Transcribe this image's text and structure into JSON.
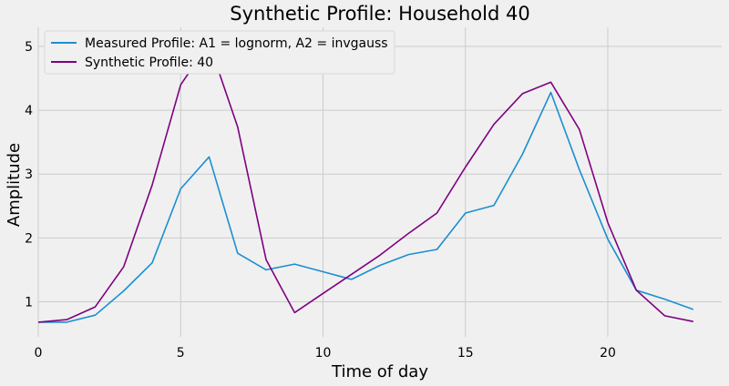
{
  "chart_data": {
    "type": "line",
    "title": "Synthetic Profile: Household 40",
    "xlabel": "Time of day",
    "ylabel": "Amplitude",
    "xlim": [
      0,
      24
    ],
    "ylim": [
      0.45,
      5.3
    ],
    "xticks": [
      0,
      5,
      10,
      15,
      20
    ],
    "yticks": [
      1,
      2,
      3,
      4,
      5
    ],
    "grid": true,
    "legend_position": "top-left",
    "x": [
      0,
      1,
      2,
      3,
      4,
      5,
      6,
      7,
      8,
      9,
      10,
      11,
      12,
      13,
      14,
      15,
      16,
      17,
      18,
      19,
      20,
      21,
      22,
      23
    ],
    "series": [
      {
        "name": "Measured Profile: A1 = lognorm, A2 = invgauss",
        "color": "#1a8fd0",
        "values": [
          0.68,
          0.68,
          0.79,
          1.17,
          1.61,
          2.77,
          3.27,
          1.76,
          1.5,
          1.59,
          1.47,
          1.35,
          1.57,
          1.74,
          1.82,
          2.39,
          2.51,
          3.31,
          4.28,
          3.07,
          1.98,
          1.18,
          1.04,
          0.88
        ]
      },
      {
        "name": "Synthetic Profile: 40",
        "color": "#800080",
        "values": [
          0.68,
          0.72,
          0.92,
          1.55,
          2.83,
          4.4,
          5.05,
          3.74,
          1.66,
          0.83,
          1.13,
          1.43,
          1.73,
          2.07,
          2.39,
          3.11,
          3.78,
          4.26,
          4.44,
          3.7,
          2.24,
          1.18,
          0.78,
          0.69
        ]
      }
    ]
  }
}
